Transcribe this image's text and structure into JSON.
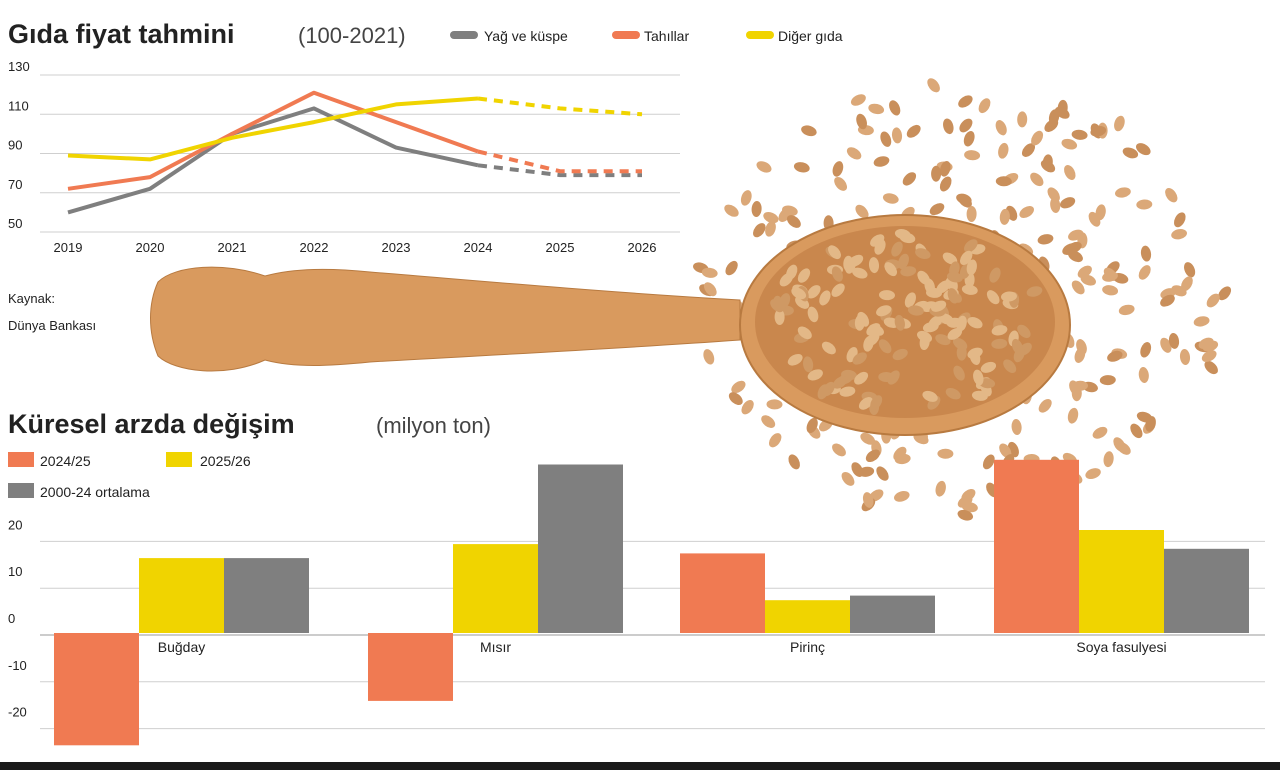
{
  "colors": {
    "oil": "#7f7f7f",
    "grains": "#f07a52",
    "other": "#f0d400",
    "avg": "#7f7f7f",
    "s2425": "#f07a52",
    "s2526": "#f0d400",
    "grid": "#cfcfcf",
    "text": "#222222",
    "wood": "#d99a5e",
    "wheat": "#dba878"
  },
  "chart_data": [
    {
      "type": "line",
      "title": "Gıda fiyat tahmini",
      "subtitle": "(100-2021)",
      "x": [
        "2019",
        "2020",
        "2021",
        "2022",
        "2023",
        "2024",
        "2025",
        "2026"
      ],
      "ylim": [
        50,
        130
      ],
      "yticks": [
        "130",
        "110",
        "90",
        "70",
        "50"
      ],
      "grid": true,
      "legend_position": "top",
      "series": [
        {
          "name": "Yağ ve küspe",
          "color": "#7f7f7f",
          "values": [
            60,
            72,
            100,
            113,
            93,
            84,
            79,
            79
          ],
          "forecast_from": 5
        },
        {
          "name": "Tahıllar",
          "color": "#f07a52",
          "values": [
            72,
            78,
            100,
            121,
            106,
            91,
            81,
            81
          ],
          "forecast_from": 5
        },
        {
          "name": "Diğer gıda",
          "color": "#f0d400",
          "values": [
            89,
            87,
            98,
            106,
            115,
            118,
            113,
            110
          ],
          "forecast_from": 5
        }
      ],
      "source_label": "Kaynak:",
      "source_name": "Dünya Bankası"
    },
    {
      "type": "bar",
      "title": "Küresel arzda değişim",
      "subtitle": "(milyon ton)",
      "categories": [
        "Buğday",
        "Mısır",
        "Pirinç",
        "Soya fasulyesi"
      ],
      "ylim": [
        -24,
        37
      ],
      "yticks": [
        "20",
        "10",
        "0",
        "-10",
        "-20"
      ],
      "grid": true,
      "legend_position": "top-left",
      "series": [
        {
          "name": "2024/25",
          "color": "#f07a52",
          "values": [
            -24,
            -14.5,
            17,
            37
          ]
        },
        {
          "name": "2025/26",
          "color": "#f0d400",
          "values": [
            16,
            19,
            7,
            22
          ]
        },
        {
          "name": "2000-24 ortalama",
          "color": "#7f7f7f",
          "values": [
            16,
            36,
            8,
            18
          ]
        }
      ]
    }
  ]
}
